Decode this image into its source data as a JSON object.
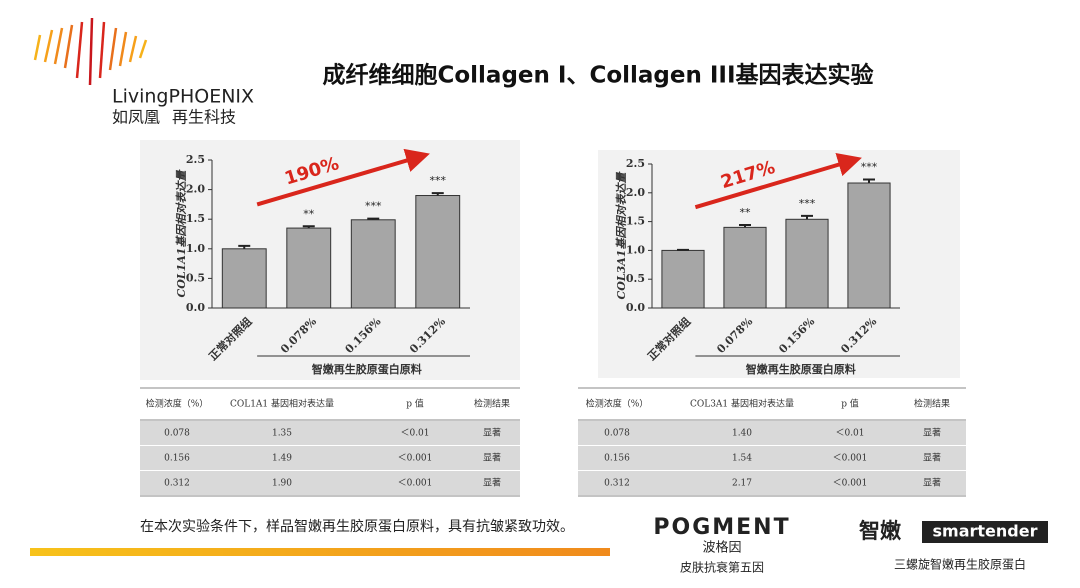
{
  "logo": {
    "brand": "LivingPHOENIX",
    "cn": "如凤凰",
    "cn_suffix": "再生科技"
  },
  "title": "成纤维细胞Collagen I、Collagen III基因表达实验",
  "chart_data": [
    {
      "type": "bar",
      "ylabel": "COL1A1基因相对表达量",
      "categories": [
        "正常对照组",
        "0.078%",
        "0.156%",
        "0.312%"
      ],
      "group_label": "智嫩再生胶原蛋白原料",
      "values": [
        1.0,
        1.35,
        1.49,
        1.9
      ],
      "errors": [
        0.05,
        0.03,
        0.02,
        0.04
      ],
      "annotations": [
        null,
        "**",
        "***",
        "***"
      ],
      "arrow_label": "190%",
      "color": "#a6a6a6",
      "ylim": [
        0,
        2.5
      ],
      "yticks": [
        {
          "value": 0,
          "label": "0.0"
        },
        0.5,
        {
          "value": 1,
          "label": "1.0"
        },
        1.5,
        {
          "value": 2,
          "label": "2.0"
        },
        2.5
      ]
    },
    {
      "type": "bar",
      "ylabel": "COL3A1基因相对表达量",
      "categories": [
        "正常对照组",
        "0.078%",
        "0.156%",
        "0.312%"
      ],
      "group_label": "智嫩再生胶原蛋白原料",
      "values": [
        1.0,
        1.4,
        1.54,
        2.17
      ],
      "errors": [
        0.01,
        0.04,
        0.06,
        0.06
      ],
      "annotations": [
        null,
        "**",
        "***",
        "***"
      ],
      "arrow_label": "217%",
      "color": "#a6a6a6",
      "ylim": [
        0,
        2.5
      ],
      "yticks": [
        {
          "value": 0,
          "label": "0.0"
        },
        0.5,
        {
          "value": 1,
          "label": "1.0"
        },
        1.5,
        {
          "value": 2,
          "label": "2.0"
        },
        2.5
      ]
    }
  ],
  "tables": [
    {
      "header": [
        "检测浓度（%）",
        "COL1A1 基因相对表达量",
        "p 值",
        "检测结果"
      ],
      "rows": [
        [
          "0.078",
          "1.35",
          "＜0.01",
          "显著"
        ],
        [
          "0.156",
          "1.49",
          "＜0.001",
          "显著"
        ],
        [
          "0.312",
          "1.90",
          "＜0.001",
          "显著"
        ]
      ]
    },
    {
      "header": [
        "检测浓度（%）",
        "COL3A1 基因相对表达量",
        "p 值",
        "检测结果"
      ],
      "rows": [
        [
          "0.078",
          "1.40",
          "＜0.01",
          "显著"
        ],
        [
          "0.156",
          "1.54",
          "＜0.001",
          "显著"
        ],
        [
          "0.312",
          "2.17",
          "＜0.001",
          "显著"
        ]
      ]
    }
  ],
  "footer": {
    "conclusion": "在本次实验条件下，样品智嫩再生胶原蛋白原料，具有抗皱紧致功效。",
    "brand1": "POGMENT",
    "brand1_cn": "波格因",
    "brand1_slogan": "皮肤抗衰第五因",
    "brand2_cn": "智嫩",
    "brand2": "smartender",
    "brand2_slogan": "三螺旋智嫩再生胶原蛋白"
  }
}
